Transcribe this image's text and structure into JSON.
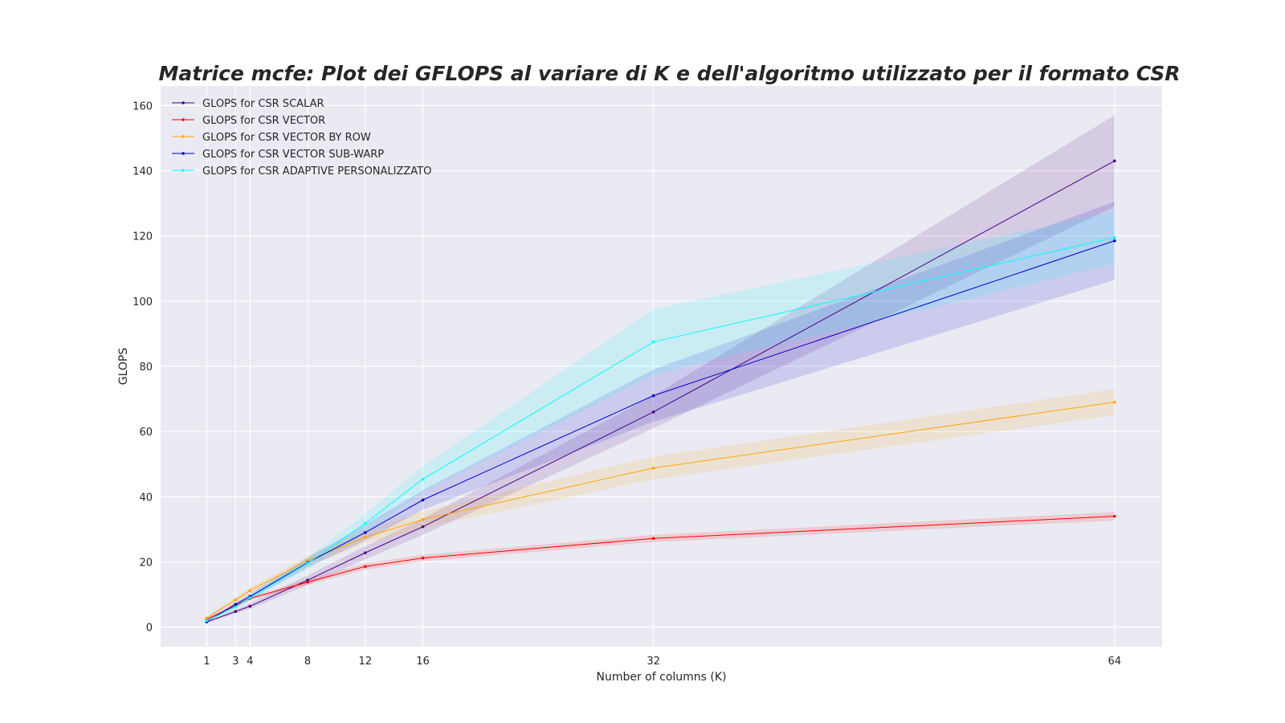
{
  "chart_data": {
    "type": "line",
    "title": "Matrice mcfe: Plot dei GFLOPS al variare di K e dell'algoritmo utilizzato per il formato CSR",
    "xlabel": "Number of columns (K)",
    "ylabel": "GLOPS",
    "x": [
      1,
      3,
      4,
      8,
      12,
      16,
      32,
      64
    ],
    "xlim": [
      -2.2,
      67.3
    ],
    "ylim": [
      -6,
      166
    ],
    "xticks": [
      1,
      3,
      4,
      8,
      12,
      16,
      32,
      64
    ],
    "yticks": [
      0,
      20,
      40,
      60,
      80,
      100,
      120,
      140,
      160
    ],
    "grid": true,
    "legend_position": "top-left",
    "series": [
      {
        "name": "GLOPS for CSR SCALAR",
        "color": "#4b0082",
        "values": [
          1.6,
          4.8,
          6.4,
          14.4,
          22.8,
          30.8,
          66,
          143
        ],
        "band": [
          0.3,
          0.6,
          0.8,
          1.5,
          2.0,
          2.5,
          5,
          14
        ]
      },
      {
        "name": "GLOPS for CSR VECTOR",
        "color": "#ff0000",
        "values": [
          2.4,
          6.6,
          8.8,
          13.8,
          18.6,
          21.2,
          27.2,
          34
        ],
        "band": [
          0.3,
          0.5,
          0.6,
          0.8,
          1.0,
          1.0,
          1.1,
          1.3
        ]
      },
      {
        "name": "GLOPS for CSR VECTOR BY ROW",
        "color": "#ffa500",
        "values": [
          2.8,
          8.4,
          11.2,
          20.4,
          27.6,
          33,
          48.8,
          69
        ],
        "band": [
          0.3,
          0.8,
          1.0,
          1.5,
          2.0,
          2.5,
          3.5,
          4.0
        ]
      },
      {
        "name": "GLOPS for CSR VECTOR SUB-WARP",
        "color": "#0000cd",
        "values": [
          1.8,
          7.0,
          9.4,
          19.8,
          29,
          39,
          71,
          118.5
        ],
        "band": [
          0.3,
          0.6,
          0.8,
          1.5,
          2.5,
          3.0,
          8,
          12
        ]
      },
      {
        "name": "GLOPS for CSR ADAPTIVE PERSONALIZZATO",
        "color": "#00ffff",
        "values": [
          2.0,
          6.2,
          9.0,
          19.6,
          31.8,
          45.4,
          87.5,
          119.5
        ],
        "band": [
          0.3,
          0.6,
          0.8,
          1.8,
          3.0,
          4.0,
          10,
          8
        ]
      }
    ]
  },
  "colors": {
    "plot_background": "#eaeaf2",
    "grid": "#ffffff",
    "text": "#262626"
  }
}
